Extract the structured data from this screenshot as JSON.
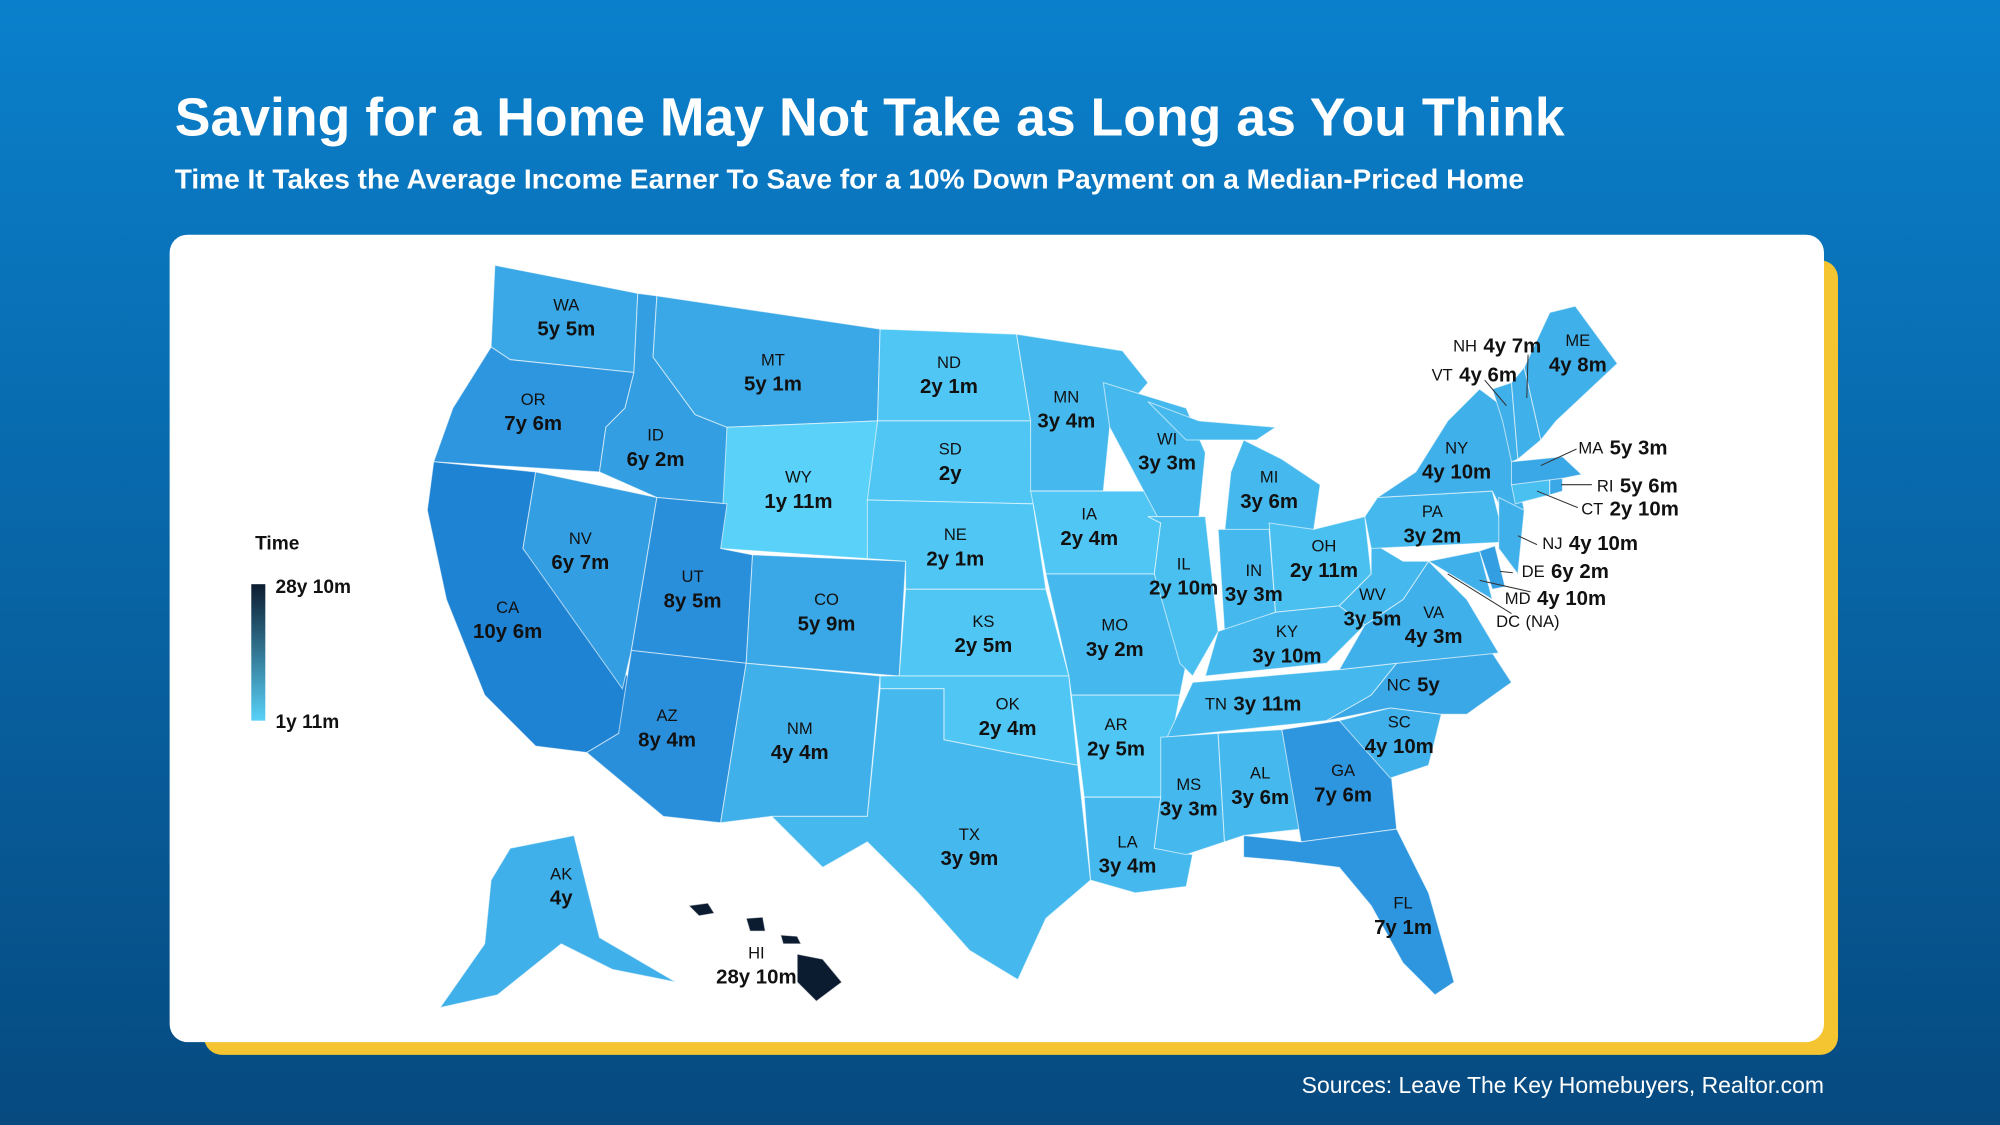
{
  "header": {
    "title": "Saving for a Home May Not Take as Long as You Think",
    "subtitle": "Time It Takes the Average Income Earner To Save for a 10% Down Payment on a Median-Priced Home"
  },
  "legend": {
    "title": "Time",
    "max_label": "28y 10m",
    "min_label": "1y 11m",
    "max_color": "#0c1c30",
    "min_color": "#59d1f8"
  },
  "states": [
    {
      "abbr": "WA",
      "time": "5y 5m",
      "color": "#3aa8e6"
    },
    {
      "abbr": "OR",
      "time": "7y 6m",
      "color": "#2e96df"
    },
    {
      "abbr": "CA",
      "time": "10y 6m",
      "color": "#1f83d4"
    },
    {
      "abbr": "NV",
      "time": "6y 7m",
      "color": "#339fe2"
    },
    {
      "abbr": "ID",
      "time": "6y 2m",
      "color": "#339fe2"
    },
    {
      "abbr": "MT",
      "time": "5y 1m",
      "color": "#3aa8e6"
    },
    {
      "abbr": "WY",
      "time": "1y 11m",
      "color": "#59d1f8"
    },
    {
      "abbr": "UT",
      "time": "8y 5m",
      "color": "#2a8fdb"
    },
    {
      "abbr": "CO",
      "time": "5y 9m",
      "color": "#3aa8e6"
    },
    {
      "abbr": "AZ",
      "time": "8y 4m",
      "color": "#2a8fdb"
    },
    {
      "abbr": "NM",
      "time": "4y 4m",
      "color": "#40b0ea"
    },
    {
      "abbr": "ND",
      "time": "2y 1m",
      "color": "#50c6f4"
    },
    {
      "abbr": "SD",
      "time": "2y",
      "color": "#50c6f4"
    },
    {
      "abbr": "NE",
      "time": "2y 1m",
      "color": "#50c6f4"
    },
    {
      "abbr": "KS",
      "time": "2y 5m",
      "color": "#50c6f4"
    },
    {
      "abbr": "OK",
      "time": "2y 4m",
      "color": "#50c6f4"
    },
    {
      "abbr": "TX",
      "time": "3y 9m",
      "color": "#45b9ee"
    },
    {
      "abbr": "MN",
      "time": "3y 4m",
      "color": "#45b9ee"
    },
    {
      "abbr": "IA",
      "time": "2y 4m",
      "color": "#50c6f4"
    },
    {
      "abbr": "MO",
      "time": "3y 2m",
      "color": "#45b9ee"
    },
    {
      "abbr": "AR",
      "time": "2y 5m",
      "color": "#50c6f4"
    },
    {
      "abbr": "LA",
      "time": "3y 4m",
      "color": "#45b9ee"
    },
    {
      "abbr": "WI",
      "time": "3y 3m",
      "color": "#45b9ee"
    },
    {
      "abbr": "IL",
      "time": "2y 10m",
      "color": "#4ac0f1"
    },
    {
      "abbr": "MI",
      "time": "3y 6m",
      "color": "#45b9ee"
    },
    {
      "abbr": "IN",
      "time": "3y 3m",
      "color": "#45b9ee"
    },
    {
      "abbr": "OH",
      "time": "2y 11m",
      "color": "#4ac0f1"
    },
    {
      "abbr": "KY",
      "time": "3y 10m",
      "color": "#45b9ee"
    },
    {
      "abbr": "TN",
      "time": "3y 11m",
      "color": "#45b9ee"
    },
    {
      "abbr": "MS",
      "time": "3y 3m",
      "color": "#45b9ee"
    },
    {
      "abbr": "AL",
      "time": "3y 6m",
      "color": "#45b9ee"
    },
    {
      "abbr": "GA",
      "time": "7y 6m",
      "color": "#2e96df"
    },
    {
      "abbr": "FL",
      "time": "7y 1m",
      "color": "#2e96df"
    },
    {
      "abbr": "SC",
      "time": "4y 10m",
      "color": "#40b0ea"
    },
    {
      "abbr": "NC",
      "time": "5y",
      "color": "#3aa8e6"
    },
    {
      "abbr": "VA",
      "time": "4y 3m",
      "color": "#40b0ea"
    },
    {
      "abbr": "WV",
      "time": "3y 5m",
      "color": "#45b9ee"
    },
    {
      "abbr": "PA",
      "time": "3y 2m",
      "color": "#45b9ee"
    },
    {
      "abbr": "NY",
      "time": "4y 10m",
      "color": "#40b0ea"
    },
    {
      "abbr": "MD",
      "time": "4y 10m",
      "color": "#40b0ea"
    },
    {
      "abbr": "DE",
      "time": "6y 2m",
      "color": "#339fe2"
    },
    {
      "abbr": "NJ",
      "time": "4y 10m",
      "color": "#40b0ea"
    },
    {
      "abbr": "CT",
      "time": "2y 10m",
      "color": "#4ac0f1"
    },
    {
      "abbr": "RI",
      "time": "5y 6m",
      "color": "#3aa8e6"
    },
    {
      "abbr": "MA",
      "time": "5y 3m",
      "color": "#3aa8e6"
    },
    {
      "abbr": "VT",
      "time": "4y 6m",
      "color": "#40b0ea"
    },
    {
      "abbr": "NH",
      "time": "4y 7m",
      "color": "#40b0ea"
    },
    {
      "abbr": "ME",
      "time": "4y 8m",
      "color": "#40b0ea"
    },
    {
      "abbr": "AK",
      "time": "4y",
      "color": "#40b0ea"
    },
    {
      "abbr": "HI",
      "time": "28y 10m",
      "color": "#0c1c30"
    },
    {
      "abbr": "DC",
      "time": "(NA)"
    }
  ],
  "source": "Sources: Leave The Key Homebuyers, Realtor.com"
}
